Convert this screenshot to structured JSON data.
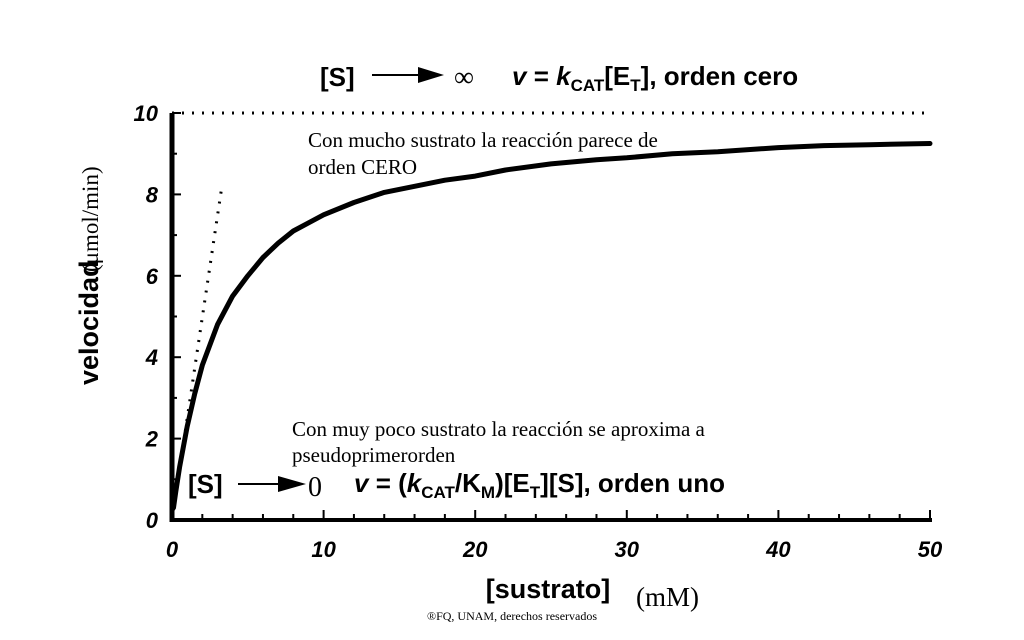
{
  "chart_data": {
    "type": "line",
    "title": "",
    "xlabel": "[sustrato]",
    "xlabel_unit": "(mM)",
    "ylabel": "velocidad",
    "ylabel_unit": "(μmol/min)",
    "xlim": [
      0,
      50
    ],
    "ylim": [
      0,
      10
    ],
    "x_ticks": [
      "0",
      "10",
      "20",
      "30",
      "40",
      "50"
    ],
    "y_ticks": [
      "0",
      "2",
      "4",
      "6",
      "8",
      "10"
    ],
    "grid": false,
    "series": [
      {
        "style": "solid",
        "x": [
          0.1,
          0.25,
          0.5,
          0.75,
          1,
          1.5,
          2,
          3,
          4,
          5,
          6,
          7,
          8,
          9,
          10,
          12,
          14,
          16,
          18,
          20,
          22,
          25,
          28,
          30,
          33,
          36,
          40,
          43,
          46,
          50
        ],
        "y": [
          0.3,
          0.7,
          1.3,
          1.8,
          2.3,
          3.1,
          3.8,
          4.8,
          5.5,
          6.0,
          6.45,
          6.8,
          7.1,
          7.3,
          7.5,
          7.8,
          8.05,
          8.2,
          8.35,
          8.45,
          8.6,
          8.75,
          8.85,
          8.9,
          9.0,
          9.05,
          9.15,
          9.2,
          9.22,
          9.25
        ]
      },
      {
        "style": "dotted",
        "x": [
          0,
          3.25
        ],
        "y": [
          0,
          8.1
        ]
      },
      {
        "style": "dotted",
        "x": [
          0,
          50
        ],
        "y": [
          10,
          10
        ]
      }
    ],
    "annotations": {
      "zero_order_lhs": "[S]",
      "zero_order_limit": "∞",
      "zero_order_eq_v": "v",
      "zero_order_eq_mid": " = ",
      "zero_order_eq_k": "k",
      "zero_order_eq_k_sub": "CAT",
      "zero_order_eq_e": "[E",
      "zero_order_eq_e_sub": "T",
      "zero_order_eq_tail": "], orden cero",
      "zero_order_note_line1": "Con mucho sustrato la reacción parece de",
      "zero_order_note_line2": "orden CERO",
      "first_order_note_line1": "Con muy poco sustrato la reacción se aproxima a",
      "first_order_note_line2": "pseudoprimerorden",
      "first_order_lhs": "[S]",
      "first_order_limit": "0",
      "first_order_eq_v": "v",
      "first_order_eq_mid": " = (",
      "first_order_eq_k": "k",
      "first_order_eq_k_sub": "CAT",
      "first_order_eq_km": "/K",
      "first_order_eq_km_sub": "M",
      "first_order_eq_e": ")[E",
      "first_order_eq_e_sub": "T",
      "first_order_eq_tail": "][S], orden uno"
    },
    "footer": "®FQ, UNAM, derechos reservados"
  }
}
